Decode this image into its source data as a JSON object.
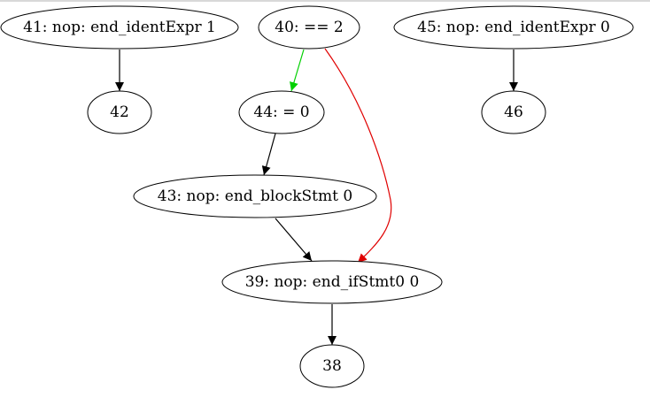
{
  "graph": {
    "nodes": [
      {
        "id": "41",
        "label": "41: nop: end_identExpr 1"
      },
      {
        "id": "42",
        "label": "42"
      },
      {
        "id": "40",
        "label": "40: == 2"
      },
      {
        "id": "44",
        "label": "44: = 0"
      },
      {
        "id": "43",
        "label": "43: nop: end_blockStmt 0"
      },
      {
        "id": "39",
        "label": "39: nop: end_ifStmt0 0"
      },
      {
        "id": "38",
        "label": "38"
      },
      {
        "id": "45",
        "label": "45: nop: end_identExpr 0"
      },
      {
        "id": "46",
        "label": "46"
      }
    ],
    "edges": [
      {
        "from": "41",
        "to": "42",
        "color": "#000000"
      },
      {
        "from": "40",
        "to": "44",
        "color": "#00d000"
      },
      {
        "from": "40",
        "to": "39",
        "color": "#e00000"
      },
      {
        "from": "44",
        "to": "43",
        "color": "#000000"
      },
      {
        "from": "43",
        "to": "39",
        "color": "#000000"
      },
      {
        "from": "39",
        "to": "38",
        "color": "#000000"
      },
      {
        "from": "45",
        "to": "46",
        "color": "#000000"
      }
    ]
  }
}
